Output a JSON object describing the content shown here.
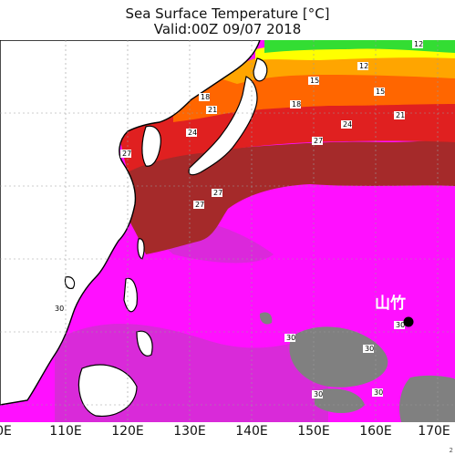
{
  "title": "Sea Surface Temperature [°C]",
  "valid": "Valid:00Z 09/07 2018",
  "longitude_labels": [
    "0E",
    "110E",
    "120E",
    "130E",
    "140E",
    "150E",
    "160E",
    "170E"
  ],
  "contour_labels": [
    "12",
    "15",
    "18",
    "21",
    "24",
    "27",
    "30"
  ],
  "marker_label": "山竹",
  "corner_text": "2",
  "colors": {
    "land": "#ffffff",
    "coast": "#000000",
    "sst_warm": "#ff10ff",
    "sst_30": "#cc33cc",
    "sst_27": "#a52a2a",
    "sst_24": "#e02020",
    "sst_21": "#ff6600",
    "sst_18": "#ffa500",
    "sst_15": "#ffff00",
    "sst_12": "#33dd33",
    "cool_pool": "#808080"
  }
}
